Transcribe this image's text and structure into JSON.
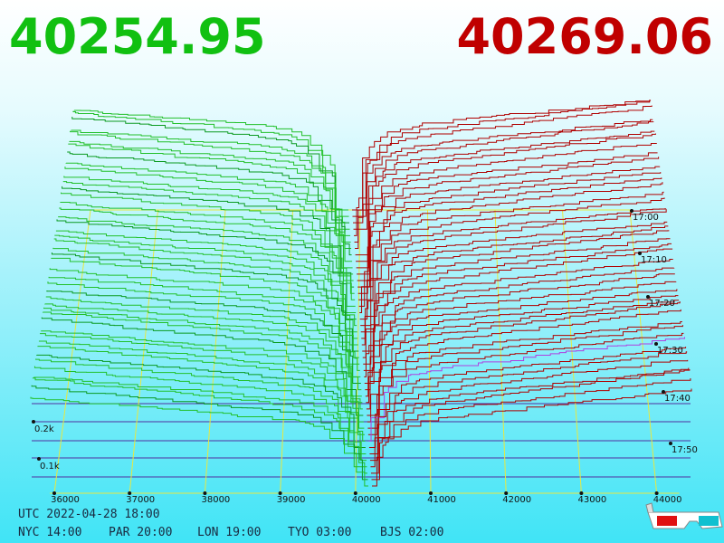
{
  "header": {
    "bid_price": "40254.95",
    "ask_price": "40269.06"
  },
  "price_axis": {
    "labels": [
      "36000",
      "37000",
      "38000",
      "39000",
      "40000",
      "41000",
      "42000",
      "43000",
      "44000"
    ]
  },
  "time_axis": {
    "labels": [
      "17:00",
      "17:10",
      "17:20",
      "17:30",
      "17:40",
      "17:50"
    ]
  },
  "depth_axis": {
    "labels": [
      "0.2k",
      "0.1k"
    ]
  },
  "footer": {
    "utc": "UTC 2022-04-28 18:00",
    "clocks": [
      "NYC 14:00",
      "PAR 20:00",
      "LON 19:00",
      "TYO 03:00",
      "BJS 02:00"
    ]
  }
}
